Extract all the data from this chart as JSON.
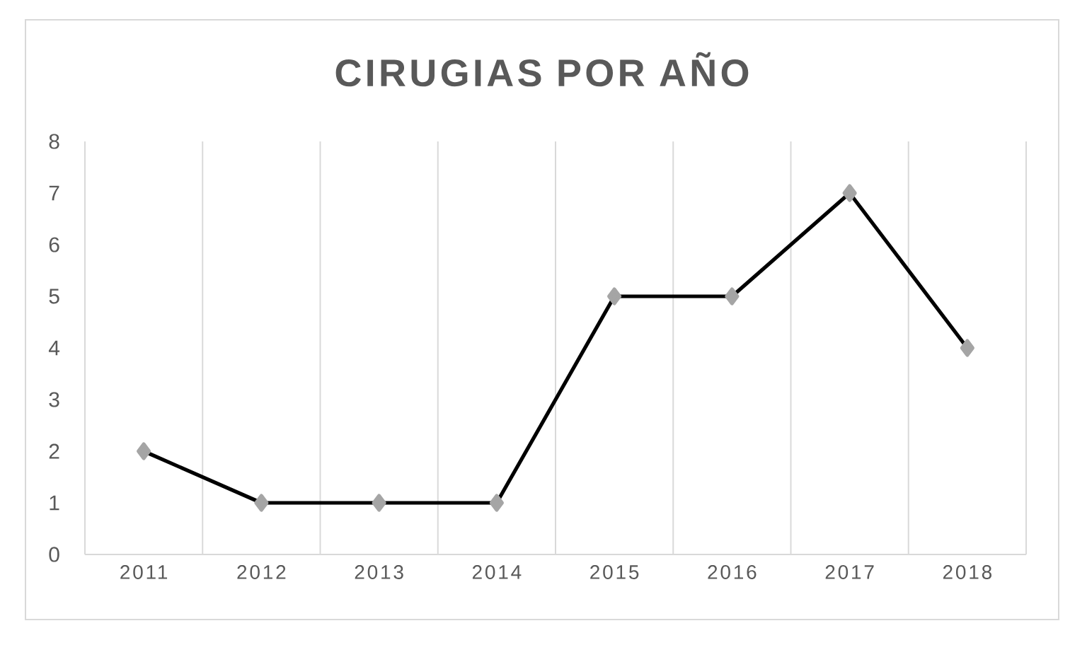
{
  "chart_data": {
    "type": "line",
    "title": "CIRUGIAS POR AÑO",
    "categories": [
      "2011",
      "2012",
      "2013",
      "2014",
      "2015",
      "2016",
      "2017",
      "2018"
    ],
    "series": [
      {
        "color": "#000000",
        "values": [
          2,
          1,
          1,
          1,
          5,
          5,
          7,
          4
        ]
      }
    ],
    "ylim": [
      0,
      8
    ],
    "yticks": [
      0,
      1,
      2,
      3,
      4,
      5,
      6,
      7,
      8
    ],
    "grid": "x",
    "marker": "diamond",
    "line_style": "solid"
  }
}
